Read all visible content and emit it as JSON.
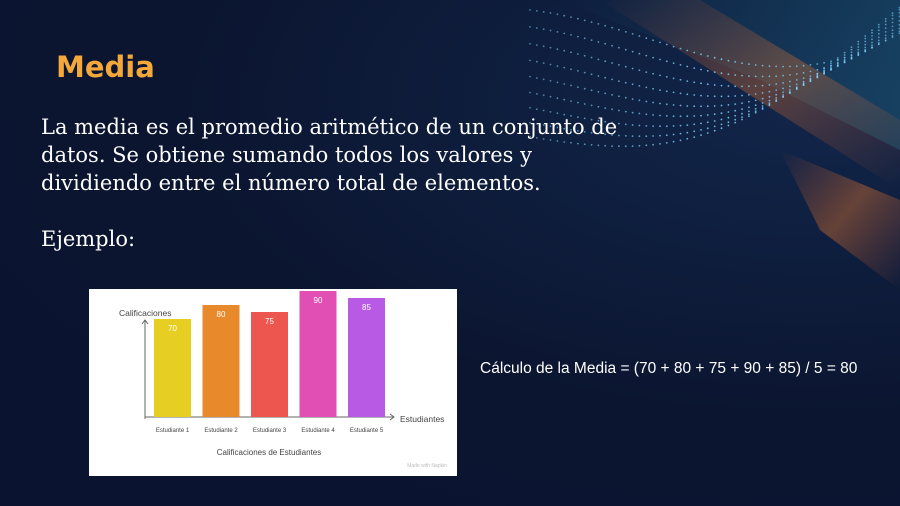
{
  "slide": {
    "title": "Media",
    "body": "La media es el promedio aritmético de un conjunto de datos. Se obtiene sumando todos los valores y dividiendo entre el número total de elementos.",
    "example_label": "Ejemplo:",
    "formula": "Cálculo de la Media = (70 + 80 + 75 + 90 + 85) / 5 = 80",
    "colors": {
      "background": "#0b1530",
      "title": "#f5a83a",
      "text": "#ffffff"
    }
  },
  "chart_data": {
    "type": "bar",
    "title": "Calificaciones de Estudiantes",
    "ylabel": "Calificaciones",
    "xlabel": "Estudiantes",
    "categories": [
      "Estudiante 1",
      "Estudiante 2",
      "Estudiante 3",
      "Estudiante 4",
      "Estudiante 5"
    ],
    "values": [
      70,
      80,
      75,
      90,
      85
    ],
    "colors": [
      "#e6cf22",
      "#e88a2c",
      "#ec564e",
      "#e24fb4",
      "#b85ae3"
    ],
    "ylim": [
      0,
      100
    ],
    "grid": false,
    "data_labels": true,
    "watermark": "Made with Napkin"
  }
}
